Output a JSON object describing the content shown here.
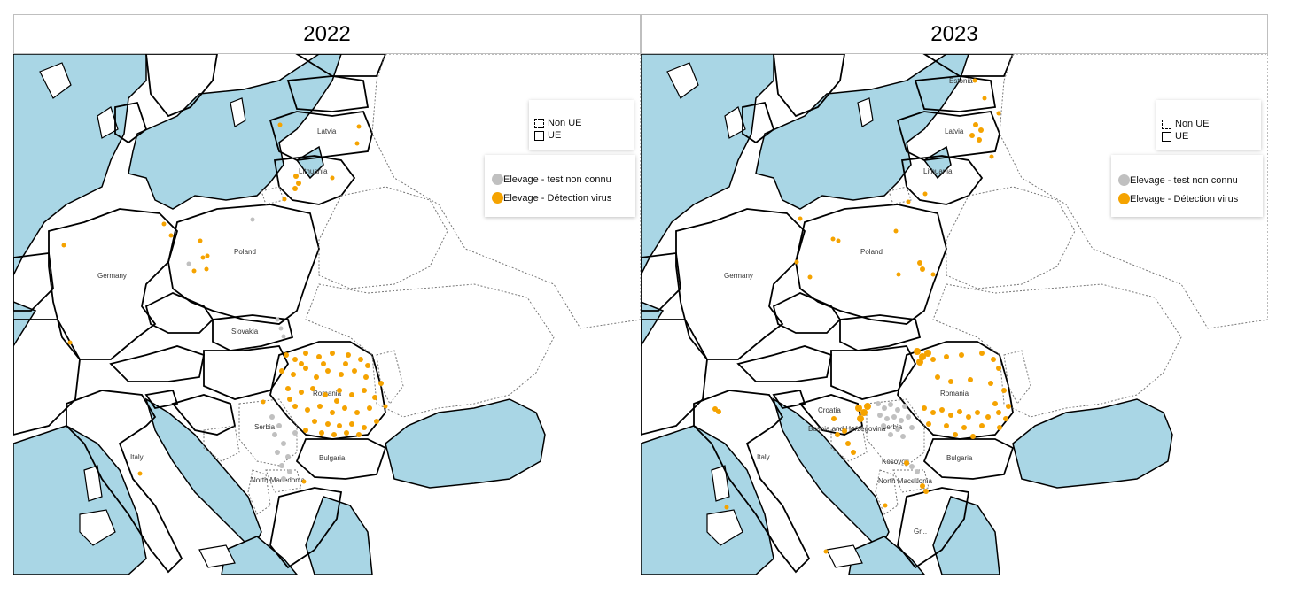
{
  "panels": [
    {
      "year": "2022",
      "legend_borders": {
        "non_eu": "Non UE",
        "eu": "UE"
      },
      "legend_cases": {
        "unknown_test": {
          "label": "Elevage - test non connu",
          "color": "#c0c0c0"
        },
        "virus_detection": {
          "label": "Elevage - Détection virus",
          "color": "#f5a300"
        }
      },
      "country_labels": {
        "latvia": "Latvia",
        "lithuania": "Lithuania",
        "poland": "Poland",
        "germany": "Germany",
        "slovakia": "Slovakia",
        "romania": "Romania",
        "serbia": "Serbia",
        "bulgaria": "Bulgaria",
        "italy": "Italy",
        "north_macedonia": "North Macedonia"
      }
    },
    {
      "year": "2023",
      "legend_borders": {
        "non_eu": "Non UE",
        "eu": "UE"
      },
      "legend_cases": {
        "unknown_test": {
          "label": "Elevage - test non connu",
          "color": "#c0c0c0"
        },
        "virus_detection": {
          "label": "Elevage - Détection virus",
          "color": "#f5a300"
        }
      },
      "country_labels": {
        "estonia": "Estonia",
        "latvia": "Latvia",
        "lithuania": "Lithuania",
        "poland": "Poland",
        "germany": "Germany",
        "croatia": "Croatia",
        "bosnia": "Bosnia and Herzegovina",
        "serbia": "Serbia",
        "romania": "Romania",
        "bulgaria": "Bulgaria",
        "kosovo": "Kosovo",
        "north_macedonia": "North Macedonia",
        "italy": "Italy",
        "greece": "Gr..."
      }
    }
  ],
  "colors": {
    "sea": "#a9d6e5",
    "land": "#ffffff",
    "border": "#000000",
    "non_eu_border": "#8a8a8a"
  }
}
